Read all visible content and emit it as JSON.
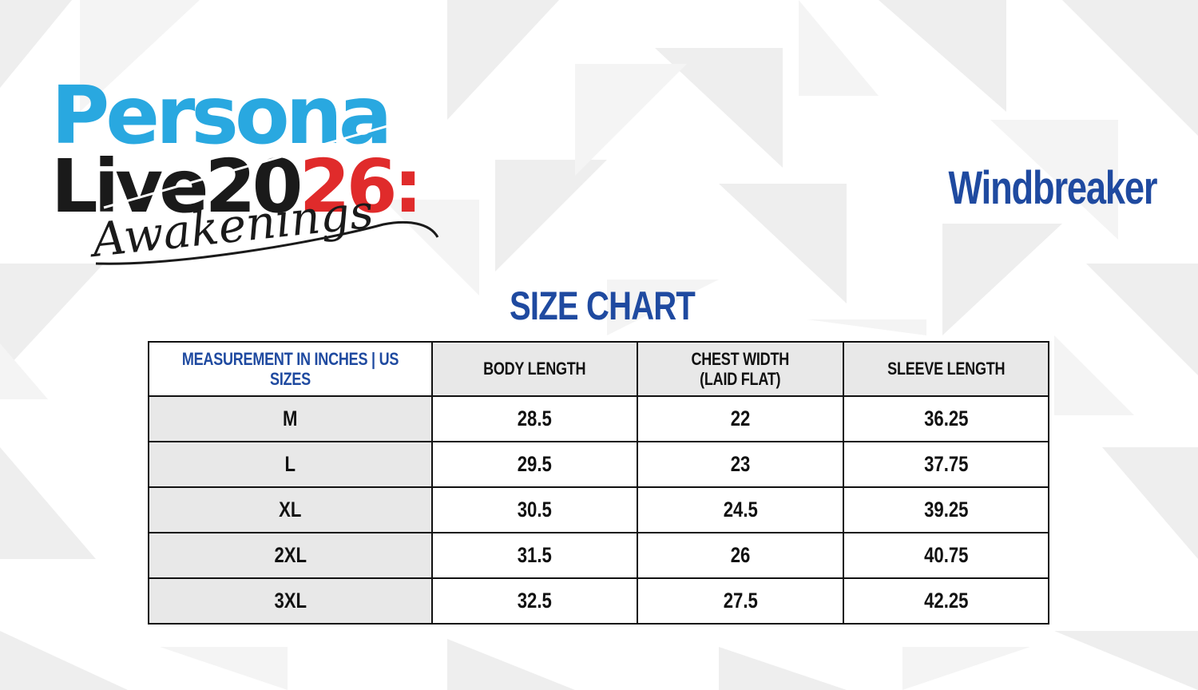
{
  "logo": {
    "line1": "Persona",
    "line2_dark": "Live20",
    "line2_red": "26:",
    "line3": "Awakenings"
  },
  "product_title": "Windbreaker",
  "chart_title": "SIZE CHART",
  "table": {
    "headers": [
      "MEASUREMENT IN INCHES | US SIZES",
      "BODY LENGTH",
      "CHEST WIDTH",
      "SLEEVE LENGTH"
    ],
    "header_sub": [
      "",
      "",
      "(LAID FLAT)",
      ""
    ],
    "rows": [
      [
        "M",
        "28.5",
        "22",
        "36.25"
      ],
      [
        "L",
        "29.5",
        "23",
        "37.75"
      ],
      [
        "XL",
        "30.5",
        "24.5",
        "39.25"
      ],
      [
        "2XL",
        "31.5",
        "26",
        "40.75"
      ],
      [
        "3XL",
        "32.5",
        "27.5",
        "42.25"
      ]
    ]
  },
  "colors": {
    "brand_blue": "#1f4aa0",
    "logo_cyan": "#29a8e0",
    "logo_red": "#e02b2b",
    "logo_dark": "#1a1a1a",
    "cell_gray": "#e8e8e8"
  }
}
